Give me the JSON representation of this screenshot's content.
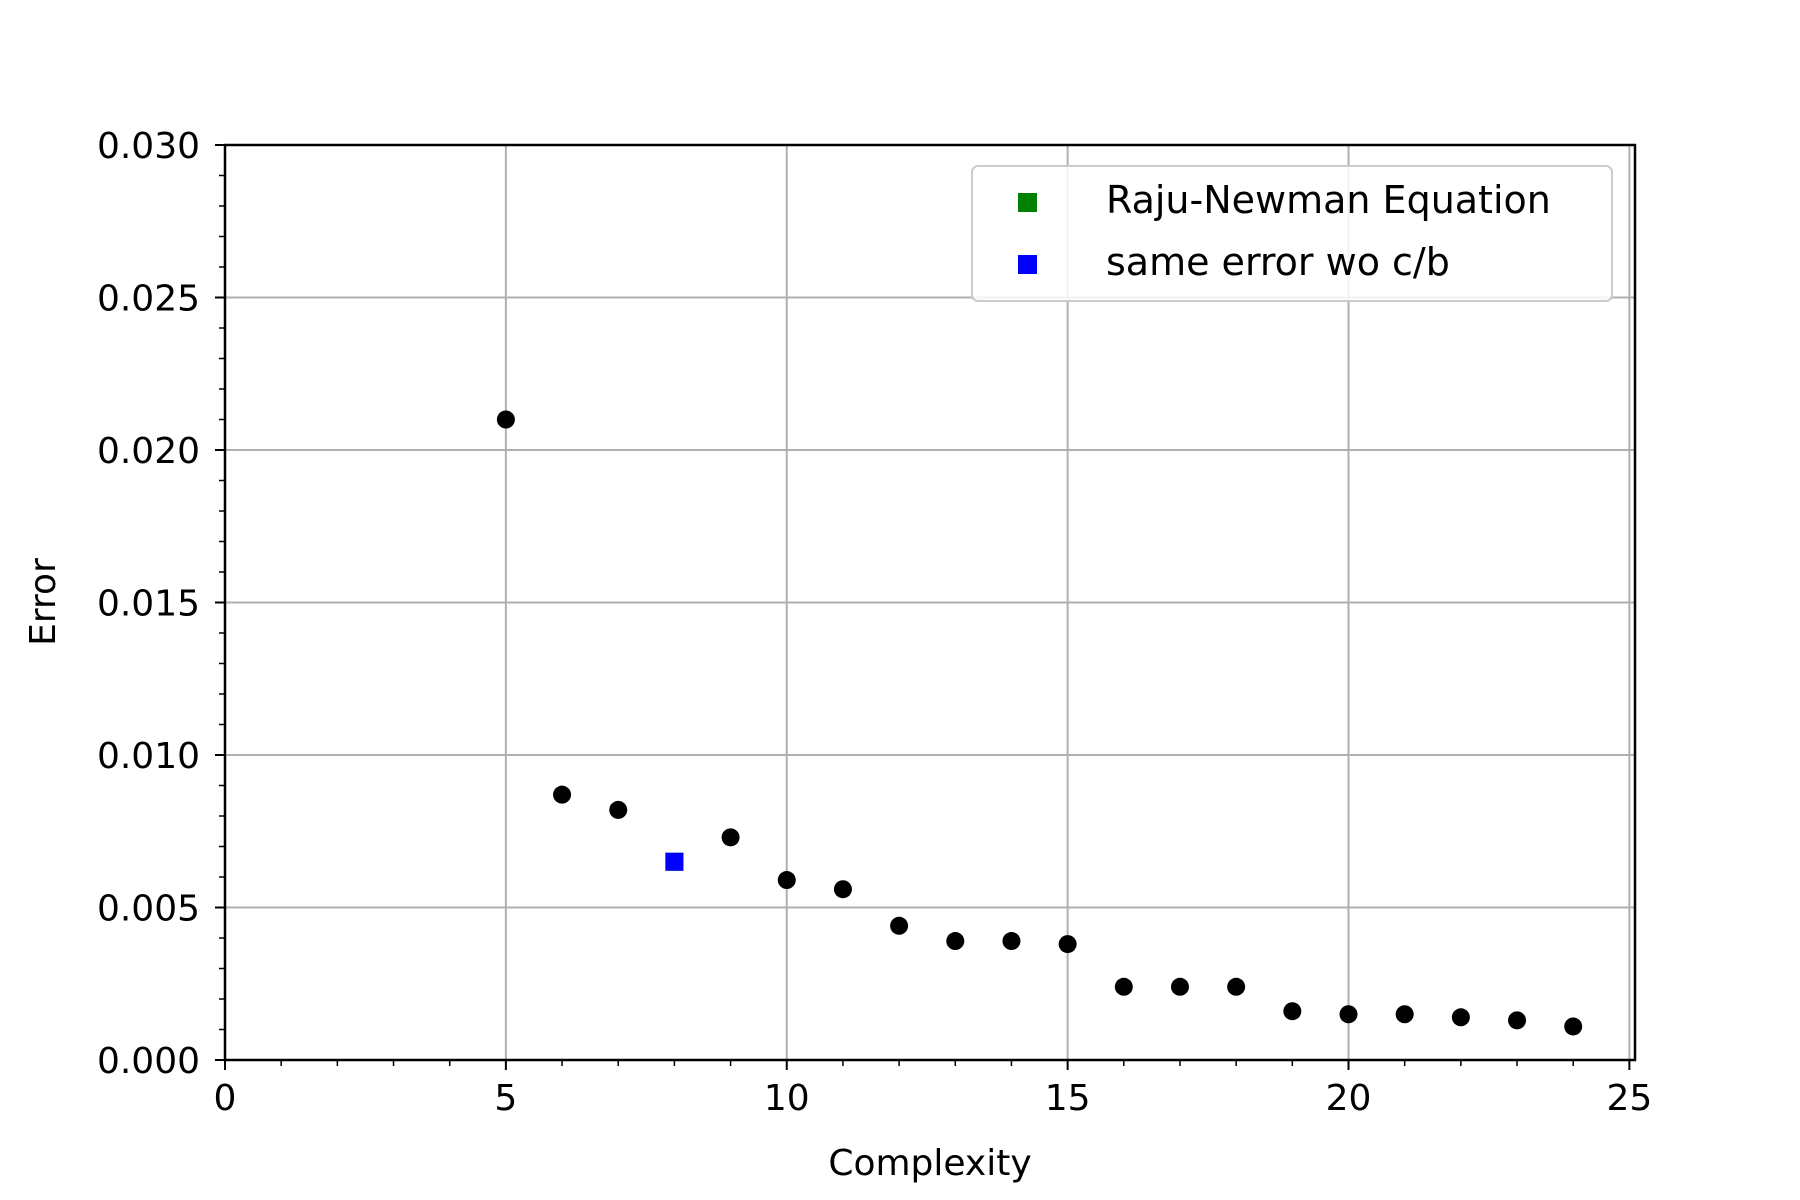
{
  "chart_data": {
    "type": "scatter",
    "title": "",
    "xlabel": "Complexity",
    "ylabel": "Error",
    "xlim": [
      0,
      25.1
    ],
    "ylim": [
      0,
      0.03
    ],
    "xticks": [
      0,
      5,
      10,
      15,
      20,
      25
    ],
    "xtick_labels": [
      "0",
      "5",
      "10",
      "15",
      "20",
      "25"
    ],
    "yticks": [
      0,
      0.005,
      0.01,
      0.015,
      0.02,
      0.025,
      0.03
    ],
    "ytick_labels": [
      "0.000",
      "0.005",
      "0.010",
      "0.015",
      "0.020",
      "0.025",
      "0.030"
    ],
    "grid": true,
    "legend_position": "top-right",
    "points": {
      "color": "#000000",
      "x": [
        5,
        6,
        7,
        9,
        10,
        11,
        12,
        13,
        14,
        15,
        16,
        17,
        18,
        19,
        20,
        21,
        22,
        23,
        24
      ],
      "y": [
        0.021,
        0.0087,
        0.0082,
        0.0073,
        0.0059,
        0.0056,
        0.0044,
        0.0039,
        0.0039,
        0.0038,
        0.0024,
        0.0024,
        0.0024,
        0.0016,
        0.0015,
        0.0015,
        0.0014,
        0.0013,
        0.0011
      ]
    },
    "series": [
      {
        "name": "Raju-Newman Equation",
        "color": "#008000",
        "marker": "square",
        "x": [
          8
        ],
        "y": [
          0.0065
        ]
      },
      {
        "name": "same error wo c/b",
        "color": "#0000ff",
        "marker": "square",
        "x": [
          8
        ],
        "y": [
          0.0065
        ]
      }
    ]
  }
}
